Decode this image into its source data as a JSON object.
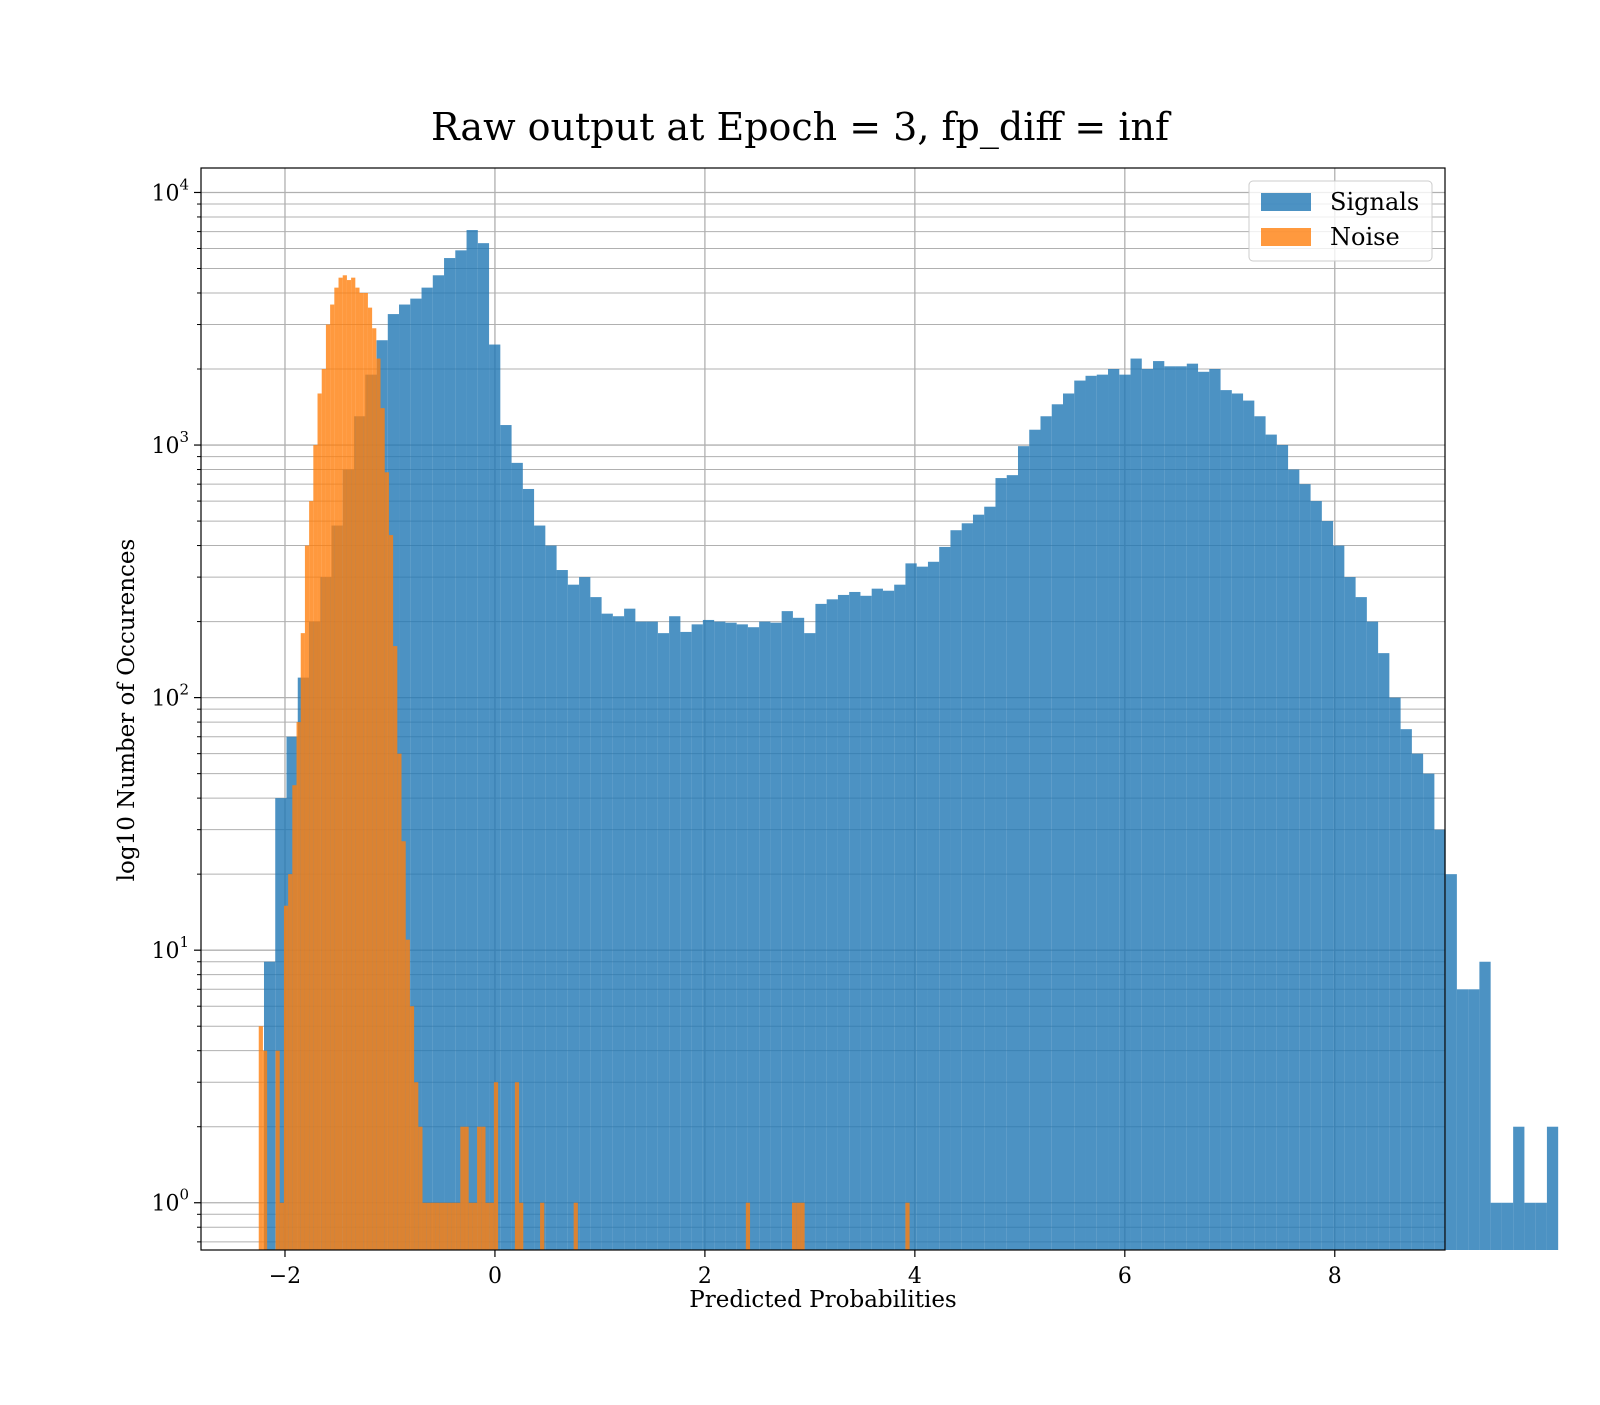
{
  "chart_data": {
    "type": "bar",
    "title": "Raw output at Epoch = 3, fp_diff = inf",
    "xlabel": "Predicted Probabilities",
    "ylabel": "log10 Number of Occurences",
    "xlim": [
      -2.8,
      9.05
    ],
    "ylim": [
      0.65,
      12500
    ],
    "yscale": "log",
    "grid": true,
    "legend_position": "top-right",
    "x_ticks": [
      {
        "value": -2,
        "label": "−2"
      },
      {
        "value": 0,
        "label": "0"
      },
      {
        "value": 2,
        "label": "2"
      },
      {
        "value": 4,
        "label": "4"
      },
      {
        "value": 6,
        "label": "6"
      },
      {
        "value": 8,
        "label": "8"
      }
    ],
    "y_ticks": [
      {
        "value": 1,
        "base": "10",
        "exp": "0"
      },
      {
        "value": 10,
        "base": "10",
        "exp": "1"
      },
      {
        "value": 100,
        "base": "10",
        "exp": "2"
      },
      {
        "value": 1000,
        "base": "10",
        "exp": "3"
      },
      {
        "value": 10000,
        "base": "10",
        "exp": "4"
      }
    ],
    "series": [
      {
        "name": "Signals",
        "color": "#1f77b4",
        "opacity": 0.8,
        "bin_start": -2.2,
        "bin_width": 0.1072,
        "values": [
          9,
          40,
          70,
          120,
          200,
          300,
          480,
          800,
          1300,
          1900,
          2600,
          3300,
          3600,
          3800,
          4200,
          4700,
          5500,
          5900,
          7100,
          6300,
          2500,
          1200,
          850,
          670,
          480,
          400,
          320,
          280,
          300,
          250,
          215,
          210,
          225,
          200,
          200,
          180,
          210,
          182,
          195,
          203,
          200,
          198,
          195,
          190,
          200,
          198,
          220,
          207,
          180,
          235,
          245,
          255,
          262,
          253,
          270,
          265,
          280,
          340,
          330,
          345,
          395,
          460,
          490,
          530,
          570,
          740,
          760,
          990,
          1150,
          1300,
          1450,
          1600,
          1800,
          1880,
          1900,
          2000,
          1900,
          2200,
          2000,
          2150,
          2050,
          2050,
          2100,
          1950,
          2000,
          1650,
          1600,
          1500,
          1300,
          1100,
          1000,
          800,
          700,
          600,
          500,
          400,
          300,
          250,
          200,
          150,
          100,
          75,
          60,
          50,
          30,
          20,
          7,
          7,
          9,
          1,
          1,
          2,
          1,
          1,
          2
        ]
      },
      {
        "name": "Noise",
        "color": "#ff7f0e",
        "opacity": 0.8,
        "bin_start": -2.25,
        "bin_width": 0.04,
        "values": [
          5,
          4,
          0,
          0,
          4,
          1,
          15,
          20,
          45,
          80,
          180,
          400,
          600,
          1000,
          1600,
          2000,
          3000,
          3600,
          4200,
          4600,
          4700,
          4500,
          4600,
          4200,
          4000,
          4000,
          3500,
          2900,
          2200,
          1400,
          780,
          440,
          160,
          60,
          27,
          11,
          6,
          3,
          2,
          1,
          1,
          1,
          1,
          1,
          1,
          1,
          1,
          1,
          2,
          2,
          1,
          1,
          2,
          2,
          1,
          1,
          3,
          0,
          0,
          0,
          0,
          3,
          1,
          0,
          0,
          0,
          0,
          1,
          0,
          0,
          0,
          0,
          0,
          0,
          0,
          1,
          0,
          0,
          0,
          0,
          0,
          0,
          0,
          0,
          0,
          0,
          0,
          0,
          0,
          0,
          0,
          0,
          0,
          0,
          0,
          0,
          0,
          0,
          0,
          0,
          0,
          0,
          0,
          0,
          0,
          0,
          0,
          0,
          0,
          0,
          0,
          0,
          0,
          0,
          0,
          0,
          1,
          0,
          0,
          0,
          0,
          0,
          0,
          0,
          0,
          0,
          0,
          1,
          1,
          1,
          0,
          0,
          0,
          0,
          0,
          0,
          0,
          0,
          0,
          0,
          0,
          0,
          0,
          0,
          0,
          0,
          0,
          0,
          0,
          0,
          0,
          0,
          0,
          0,
          1
        ]
      }
    ]
  }
}
